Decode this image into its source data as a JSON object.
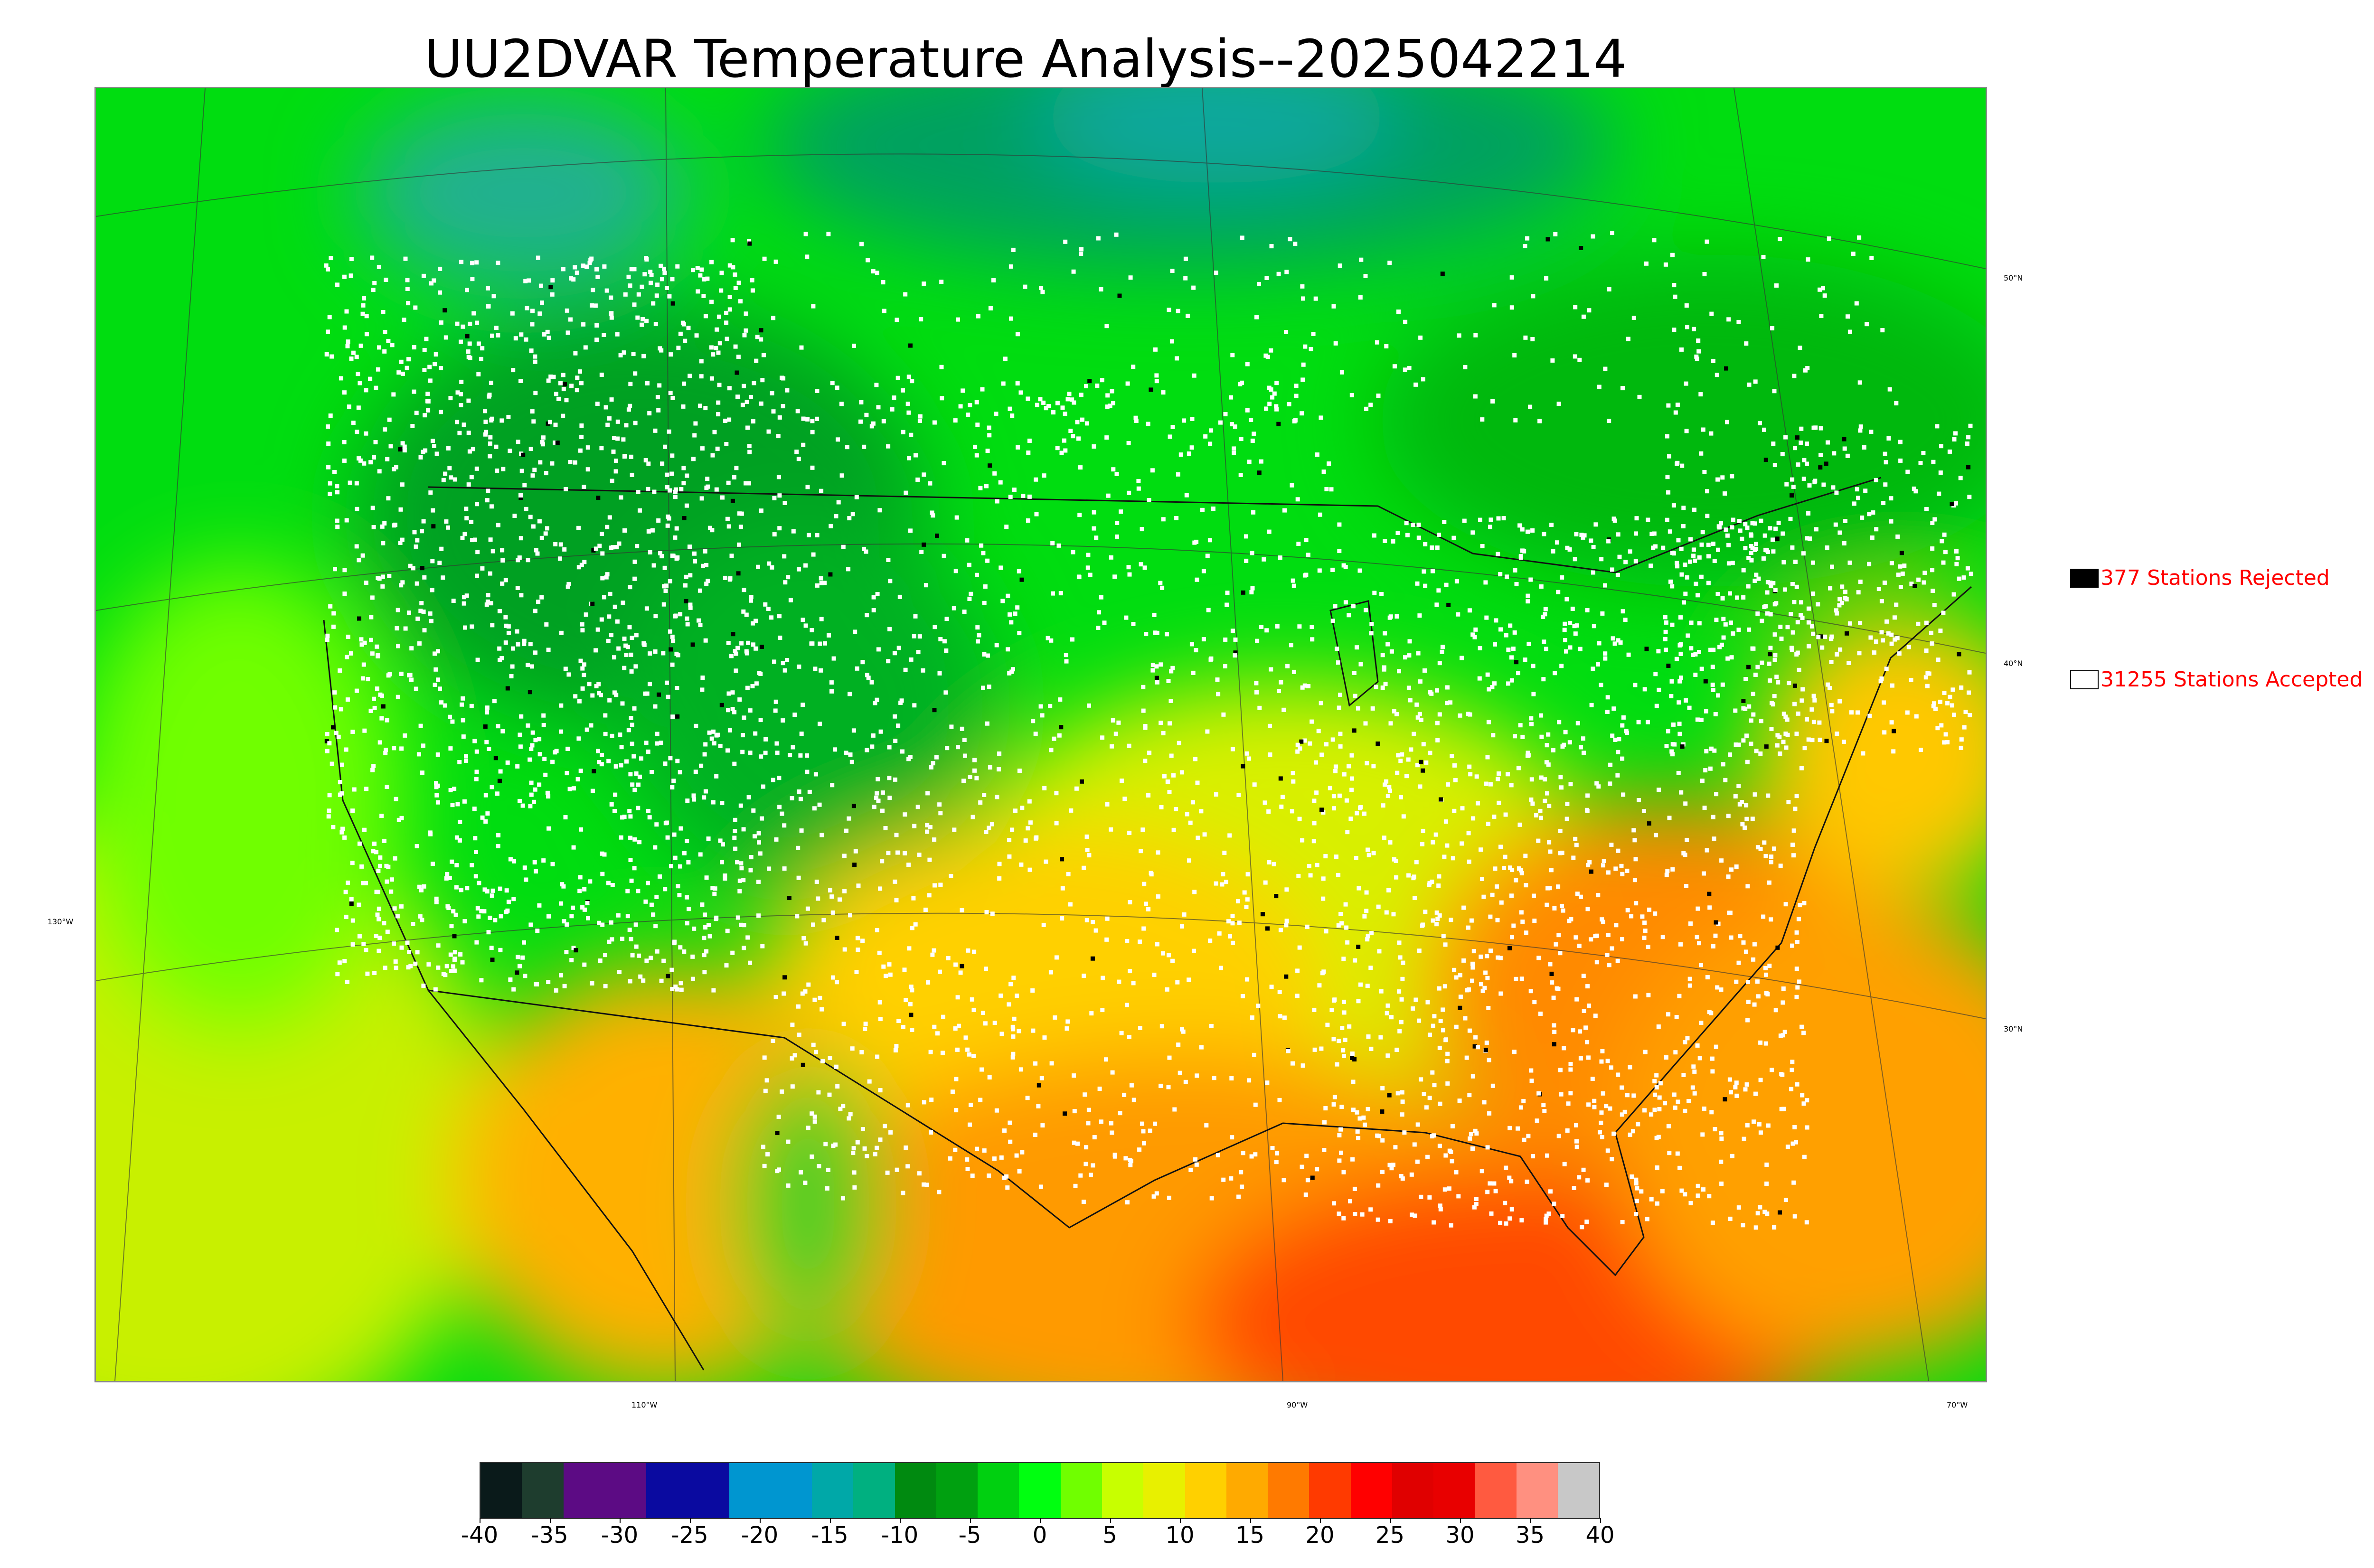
{
  "title": "UU2DVAR Temperature Analysis--2025042214",
  "map": {
    "lat_labels": [
      "50°N",
      "40°N",
      "30°N"
    ],
    "lon_labels": [
      "130°W",
      "110°W",
      "90°W",
      "70°W"
    ],
    "station_markers": "white squares (accepted), black squares (rejected)"
  },
  "legend": {
    "rejected": {
      "label": "377 Stations Rejected",
      "swatch_color": "#000000"
    },
    "accepted": {
      "label": "31255 Stations Accepted",
      "swatch_color": "#ffffff"
    },
    "text_color": "#ff0000"
  },
  "colorbar": {
    "ticks": [
      "-40",
      "-35",
      "-30",
      "-25",
      "-20",
      "-15",
      "-10",
      "-5",
      "0",
      "5",
      "10",
      "15",
      "20",
      "25",
      "30",
      "35",
      "40"
    ],
    "colors": [
      "#0a1a1a",
      "#1e3d2e",
      "#5c0b84",
      "#5c0b84",
      "#0a0aa0",
      "#0a0aa0",
      "#0096d0",
      "#0096d0",
      "#00a8a8",
      "#00b080",
      "#008a10",
      "#00a010",
      "#00d010",
      "#00ff10",
      "#70ff00",
      "#c8ff00",
      "#e8f000",
      "#ffd000",
      "#ffaa00",
      "#ff7a00",
      "#ff3a00",
      "#ff0000",
      "#e00000",
      "#e80000",
      "#ff5a40",
      "#ff9080",
      "#c8c8c8"
    ]
  }
}
